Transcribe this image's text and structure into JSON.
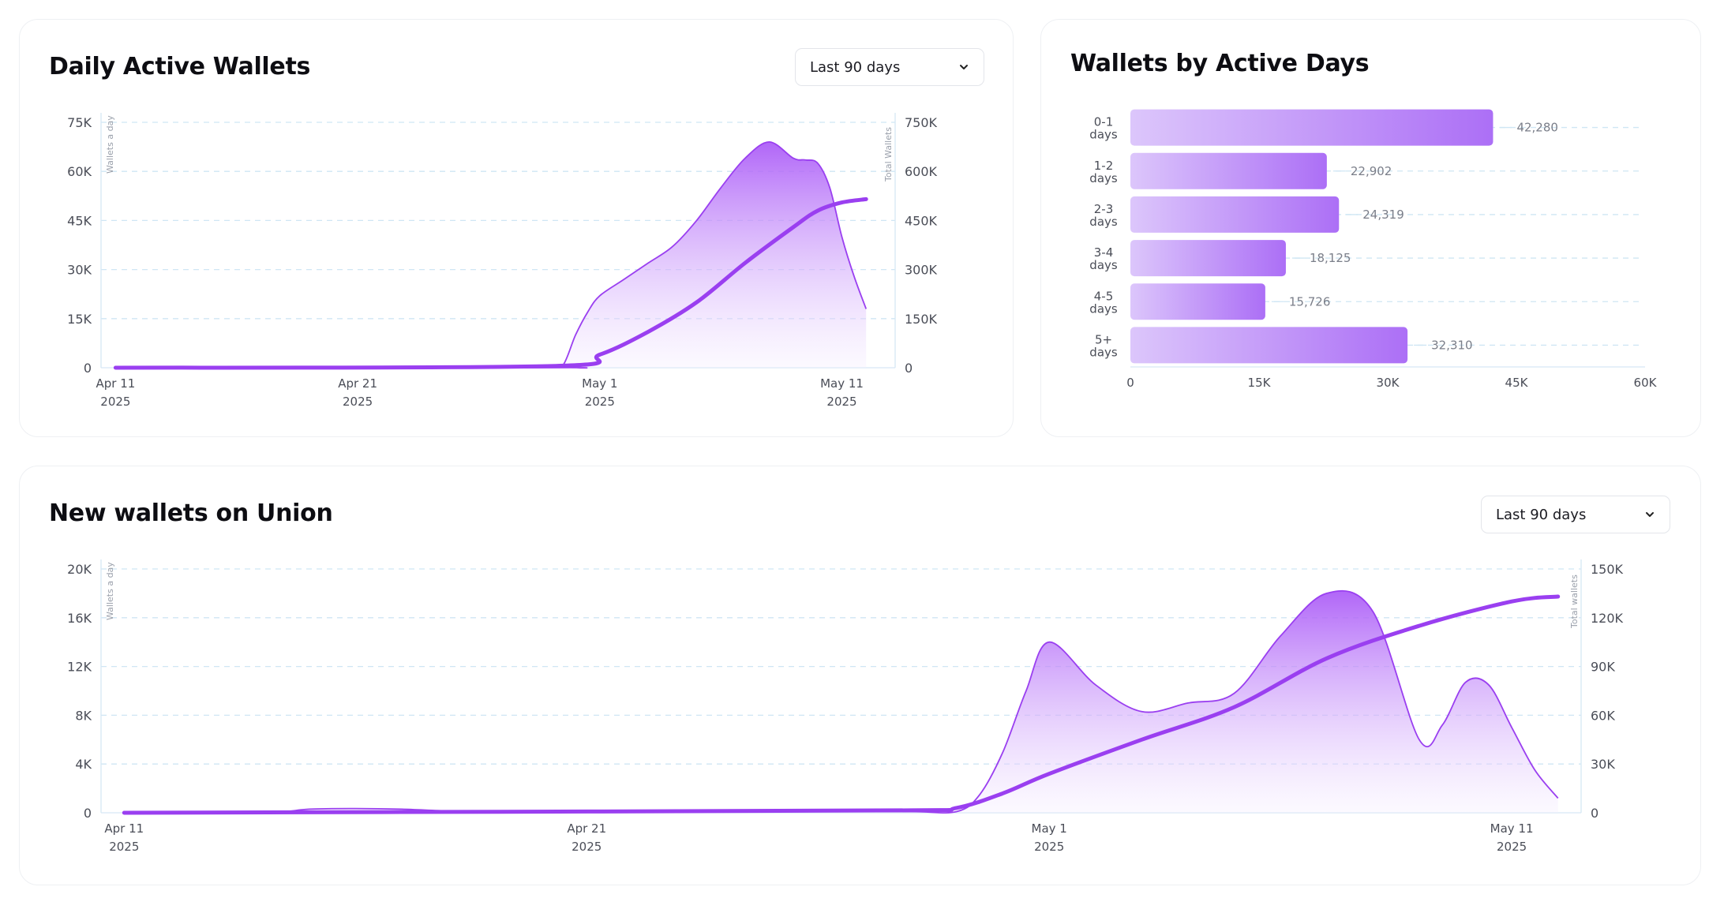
{
  "card1": {
    "title": "Daily Active Wallets",
    "dropdown_value": "Last 90 days"
  },
  "card2": {
    "title": "Wallets by Active Days"
  },
  "card3": {
    "title": "New wallets on Union",
    "dropdown_value": "Last 90 days"
  },
  "colors": {
    "accent": "#9a3ff0",
    "area_top": "#a855f7",
    "area_bottom": "#f6efff",
    "bar_light": "#dcc6fb",
    "bar_dark": "#ac6ff6",
    "grid": "#cfe6f4",
    "axis": "#d6e8f5"
  },
  "chart_data": [
    {
      "type": "area",
      "title": "Daily Active Wallets",
      "left_axis_label": "Wallets a day",
      "right_axis_label": "Total Wallets",
      "left_ticks": [
        "0",
        "15K",
        "30K",
        "45K",
        "60K",
        "75K"
      ],
      "right_ticks": [
        "0",
        "150K",
        "300K",
        "450K",
        "600K",
        "750K"
      ],
      "x_ticks": [
        {
          "label": "Apr 11",
          "year": "2025",
          "day": 0
        },
        {
          "label": "Apr 21",
          "year": "2025",
          "day": 10
        },
        {
          "label": "May 1",
          "year": "2025",
          "day": 20
        },
        {
          "label": "May 11",
          "year": "2025",
          "day": 30
        }
      ],
      "ylim_left": [
        0,
        75000
      ],
      "ylim_right": [
        0,
        750000
      ],
      "xlim": [
        -0.6,
        32.2
      ],
      "series": [
        {
          "name": "Wallets a day",
          "axis": "left",
          "x": [
            0,
            18,
            18.5,
            19,
            19.5,
            20,
            21,
            22,
            23,
            24,
            25,
            26,
            27,
            28,
            28.5,
            29,
            29.5,
            30,
            30.5,
            31
          ],
          "values": [
            0,
            0,
            1000,
            10000,
            17000,
            22000,
            27000,
            32000,
            37000,
            45000,
            55000,
            64000,
            69000,
            64000,
            63500,
            62500,
            55000,
            40000,
            28000,
            18000
          ]
        },
        {
          "name": "Total Wallets",
          "axis": "right",
          "x": [
            0,
            18,
            20,
            22,
            24,
            26,
            28,
            29,
            30,
            31
          ],
          "values": [
            0,
            5000,
            40000,
            110000,
            200000,
            320000,
            430000,
            480000,
            505000,
            515000
          ]
        }
      ]
    },
    {
      "type": "bar",
      "title": "Wallets by Active Days",
      "orientation": "horizontal",
      "categories": [
        [
          "0-1",
          "days"
        ],
        [
          "1-2",
          "days"
        ],
        [
          "2-3",
          "days"
        ],
        [
          "3-4",
          "days"
        ],
        [
          "4-5",
          "days"
        ],
        [
          "5+",
          "days"
        ]
      ],
      "values": [
        42280,
        22902,
        24319,
        18125,
        15726,
        32310
      ],
      "value_labels": [
        "42,280",
        "22,902",
        "24,319",
        "18,125",
        "15,726",
        "32,310"
      ],
      "x_ticks": [
        "0",
        "15K",
        "30K",
        "45K",
        "60K"
      ],
      "xlim": [
        0,
        60000
      ]
    },
    {
      "type": "area",
      "title": "New wallets on Union",
      "left_axis_label": "Wallets a day",
      "right_axis_label": "Total wallets",
      "left_ticks": [
        "0",
        "4K",
        "8K",
        "12K",
        "16K",
        "20K"
      ],
      "right_ticks": [
        "0",
        "30K",
        "60K",
        "90K",
        "120K",
        "150K"
      ],
      "x_ticks": [
        {
          "label": "Apr 11",
          "year": "2025",
          "day": 0
        },
        {
          "label": "Apr 21",
          "year": "2025",
          "day": 10
        },
        {
          "label": "May 1",
          "year": "2025",
          "day": 20
        },
        {
          "label": "May 11",
          "year": "2025",
          "day": 30
        }
      ],
      "ylim_left": [
        0,
        20000
      ],
      "ylim_right": [
        0,
        150000
      ],
      "xlim": [
        -0.5,
        31.5
      ],
      "series": [
        {
          "name": "Wallets a day",
          "axis": "left",
          "x": [
            0,
            3,
            4,
            5,
            6,
            7,
            8,
            10,
            15,
            17,
            18,
            18.5,
            19,
            19.5,
            20,
            21,
            22,
            23,
            24,
            25,
            26,
            27,
            28,
            28.5,
            29,
            29.5,
            30,
            30.5,
            31
          ],
          "values": [
            0,
            0,
            300,
            350,
            300,
            150,
            100,
            100,
            100,
            100,
            100,
            1500,
            5000,
            10000,
            14000,
            10500,
            8300,
            9000,
            9800,
            14500,
            18000,
            16500,
            6000,
            7200,
            10700,
            10500,
            7000,
            3500,
            1200
          ]
        },
        {
          "name": "Total wallets",
          "axis": "right",
          "x": [
            0,
            10,
            17,
            18,
            19,
            20,
            22,
            24,
            26,
            28,
            30,
            31
          ],
          "values": [
            0,
            800,
            1500,
            3000,
            12000,
            24000,
            45000,
            65000,
            95000,
            115000,
            130000,
            133000
          ]
        }
      ]
    }
  ]
}
